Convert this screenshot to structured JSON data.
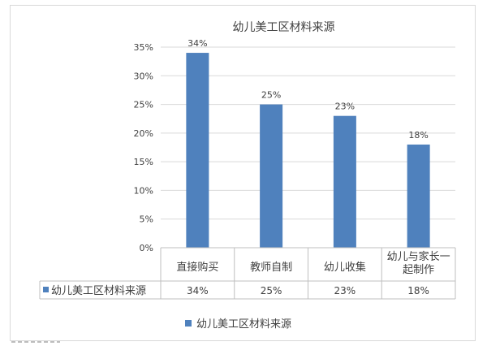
{
  "chart_data": {
    "type": "bar",
    "title": "幼儿美工区材料来源",
    "categories": [
      "直接购买",
      "教师自制",
      "幼儿收集",
      "幼儿与家长一起制作"
    ],
    "category_lines": [
      [
        "直接购买"
      ],
      [
        "教师自制"
      ],
      [
        "幼儿收集"
      ],
      [
        "幼儿与家长一",
        "起制作"
      ]
    ],
    "series": [
      {
        "name": "幼儿美工区材料来源",
        "values": [
          34,
          25,
          23,
          18
        ]
      }
    ],
    "data_labels": [
      "34%",
      "25%",
      "23%",
      "18%"
    ],
    "ylim": [
      0,
      35
    ],
    "yticks": [
      0,
      5,
      10,
      15,
      20,
      25,
      30,
      35
    ],
    "ytick_labels": [
      "0%",
      "5%",
      "10%",
      "15%",
      "20%",
      "25%",
      "30%",
      "35%"
    ],
    "grid": true,
    "data_table": true,
    "legend_position": "bottom",
    "colors": {
      "bar": "#4f81bd",
      "grid": "#d9d9d9",
      "axis": "#bfbfbf",
      "text": "#404040"
    }
  }
}
